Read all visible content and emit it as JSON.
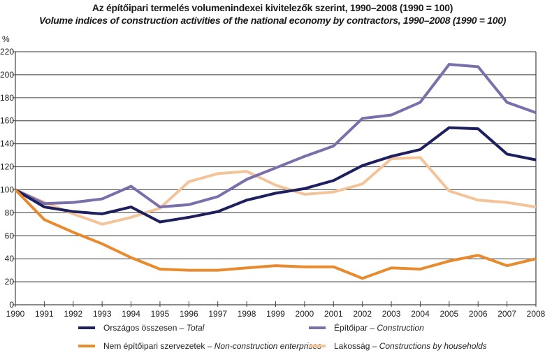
{
  "chart_data": {
    "type": "line",
    "title": "Az építőipari termelés volumenindexei kivitelezők szerint, 1990–2008 (1990 = 100)",
    "subtitle": "Volume indices of construction activities of the national economy by contractors, 1990–2008 (1990 = 100)",
    "xlabel": "",
    "ylabel": "%",
    "ylim": [
      0,
      220
    ],
    "yticks": [
      "0",
      "20",
      "40",
      "60",
      "80",
      "100",
      "120",
      "140",
      "160",
      "180",
      "200",
      "220"
    ],
    "grid": true,
    "legend_position": "bottom",
    "x": [
      "1990",
      "1991",
      "1992",
      "1993",
      "1994",
      "1995",
      "1996",
      "1997",
      "1998",
      "1999",
      "2000",
      "2001",
      "2002",
      "2003",
      "2004",
      "2005",
      "2006",
      "2007",
      "2008"
    ],
    "series": [
      {
        "name_hu": "Országos összesen",
        "name_en": "Total",
        "color": "#1d1f5e",
        "values": [
          100,
          85,
          81,
          79,
          85,
          72,
          76,
          81,
          91,
          97,
          101,
          108,
          121,
          129,
          135,
          154,
          153,
          131,
          126
        ]
      },
      {
        "name_hu": "Építőipar",
        "name_en": "Construction",
        "color": "#7b6fab",
        "values": [
          100,
          88,
          89,
          92,
          103,
          85,
          87,
          94,
          109,
          119,
          129,
          138,
          162,
          165,
          176,
          209,
          207,
          176,
          167
        ]
      },
      {
        "name_hu": "Nem építőipari szervezetek",
        "name_en": "Non-construction enterprises",
        "color": "#e88a2e",
        "values": [
          100,
          74,
          63,
          53,
          41,
          31,
          30,
          30,
          32,
          34,
          33,
          33,
          23,
          32,
          31,
          38,
          43,
          34,
          40
        ]
      },
      {
        "name_hu": "Lakosság",
        "name_en": "Constructions by households",
        "color": "#f3c49a",
        "values": [
          100,
          89,
          79,
          70,
          76,
          84,
          107,
          114,
          116,
          104,
          96,
          98,
          105,
          127,
          128,
          99,
          91,
          89,
          85
        ]
      }
    ]
  },
  "legend": {
    "separator": " – "
  }
}
